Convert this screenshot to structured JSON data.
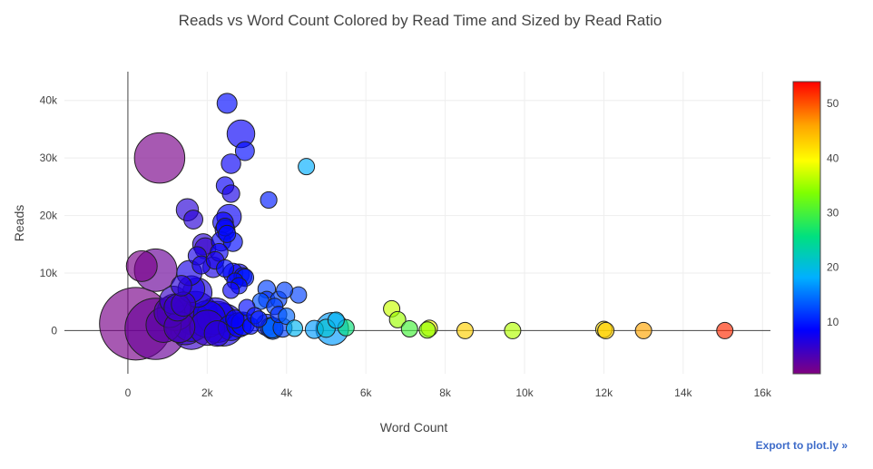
{
  "chart_data": {
    "type": "scatter",
    "title": "Reads vs Word Count Colored by Read Time and Sized by Read Ratio",
    "xlabel": "Word Count",
    "ylabel": "Reads",
    "xlim": [
      -1600,
      16200
    ],
    "ylim": [
      -7500,
      45000
    ],
    "xticks": [
      0,
      2000,
      4000,
      6000,
      8000,
      10000,
      12000,
      14000,
      16000
    ],
    "xtick_labels": [
      "0",
      "2k",
      "4k",
      "6k",
      "8k",
      "10k",
      "12k",
      "14k",
      "16k"
    ],
    "yticks": [
      0,
      10000,
      20000,
      30000,
      40000
    ],
    "ytick_labels": [
      "0",
      "10k",
      "20k",
      "30k",
      "40k"
    ],
    "colorbar": {
      "title": "",
      "range": [
        0.5,
        54
      ],
      "ticks": [
        10,
        20,
        30,
        40,
        50
      ],
      "tick_labels": [
        "10",
        "20",
        "30",
        "40",
        "50"
      ],
      "colorscale": [
        "#800080",
        "#0000ff",
        "#00b0ff",
        "#00e080",
        "#80ff00",
        "#ffff00",
        "#ffa500",
        "#ff0000"
      ]
    },
    "grid": true,
    "legend": "colorbar-right",
    "marker_opacity": 0.65,
    "x": [
      2500,
      2850,
      2950,
      2600,
      2450,
      2600,
      2550,
      2400,
      2450,
      2450,
      2500,
      2350,
      2650,
      2300,
      2200,
      2150,
      2450,
      2650,
      2800,
      2900,
      2950,
      2700,
      2800,
      2600,
      1500,
      1650,
      1900,
      1950,
      1750,
      1850,
      1550,
      1350,
      1600,
      1750,
      1150,
      1400,
      1250,
      1050,
      3550,
      3500,
      4500,
      3500,
      3800,
      3950,
      4300,
      3350,
      3700,
      3800,
      4000,
      3000,
      3200,
      3300,
      3500,
      3600,
      2200,
      2250,
      2700,
      2900,
      3100,
      1700,
      2000,
      1600,
      1450,
      2400,
      2600,
      1300,
      800,
      2000,
      2800,
      3900,
      4200,
      3650,
      700,
      350,
      900,
      1200,
      200,
      700,
      1600,
      2250,
      3650,
      5150,
      5500,
      5250,
      4700,
      5000,
      6650,
      6800,
      7100,
      7600,
      7550,
      8500,
      9700,
      12000,
      12050,
      13000,
      15050
    ],
    "y": [
      39500,
      34200,
      31200,
      29000,
      25200,
      23800,
      19800,
      18800,
      18000,
      17500,
      16800,
      15500,
      15400,
      13600,
      12200,
      11000,
      10800,
      10000,
      9800,
      9400,
      9200,
      8600,
      7800,
      7000,
      21000,
      19300,
      15000,
      14300,
      13000,
      11400,
      10000,
      7800,
      7200,
      6600,
      5300,
      4600,
      4000,
      3200,
      22700,
      7200,
      28500,
      5400,
      5400,
      7000,
      6200,
      5100,
      4200,
      2800,
      2500,
      4000,
      2600,
      2000,
      1000,
      500,
      2500,
      1500,
      2000,
      1200,
      800,
      3000,
      2000,
      1500,
      1000,
      1000,
      500,
      600,
      30000,
      500,
      1000,
      500,
      400,
      300,
      10500,
      11200,
      1000,
      3200,
      1200,
      300,
      300,
      -500,
      500,
      300,
      500,
      1800,
      200,
      400,
      3800,
      1900,
      300,
      400,
      100,
      0,
      0,
      200,
      0,
      0,
      0
    ],
    "read_time": [
      9,
      8,
      9,
      8,
      8,
      7,
      8,
      8,
      9,
      7,
      9,
      8,
      9,
      8,
      7,
      7,
      9,
      8,
      8,
      9,
      10,
      9,
      9,
      8,
      6,
      6,
      6,
      5,
      7,
      7,
      7,
      6,
      7,
      7,
      5,
      5,
      5,
      4,
      10,
      12,
      18,
      11,
      12,
      12,
      12,
      13,
      12,
      11,
      14,
      9,
      9,
      10,
      10,
      11,
      7,
      8,
      8,
      9,
      9,
      6,
      7,
      6,
      5,
      7,
      8,
      4,
      1,
      5,
      8,
      12,
      19,
      13,
      2,
      1,
      3,
      4,
      1,
      2,
      5,
      6,
      15,
      17,
      26,
      19,
      17,
      21,
      37,
      35,
      30,
      40,
      34,
      43,
      36,
      42,
      43,
      46,
      52
    ],
    "read_ratio": [
      5.6,
      11.8,
      5,
      5.3,
      4.2,
      4.1,
      9,
      6,
      4.2,
      5.5,
      4,
      5.2,
      5,
      4.3,
      4.2,
      6,
      4,
      5.5,
      6,
      4.3,
      4.2,
      3.5,
      3.5,
      3.5,
      7.2,
      5,
      6.5,
      6.3,
      4.6,
      4.5,
      9.5,
      6,
      11,
      13.5,
      12,
      8.8,
      11,
      15,
      3.6,
      4.2,
      3.3,
      3.5,
      3.5,
      3.1,
      3.3,
      3.3,
      3.3,
      3.3,
      3.3,
      3.3,
      3.3,
      3.3,
      6.5,
      6,
      22,
      28,
      4.6,
      8,
      3.5,
      32,
      22,
      25,
      26,
      30,
      10,
      15,
      43,
      20,
      9,
      5,
      3.3,
      6.3,
      30,
      15,
      20,
      22,
      100,
      65,
      28,
      10,
      6,
      17,
      3.5,
      3.5,
      4.5,
      4.5,
      3.3,
      3.3,
      3.3,
      3.3,
      3.3,
      3.3,
      3.3,
      3.5,
      3.3,
      3.3,
      3.3
    ]
  },
  "export": {
    "label": "Export to plot.ly »"
  }
}
